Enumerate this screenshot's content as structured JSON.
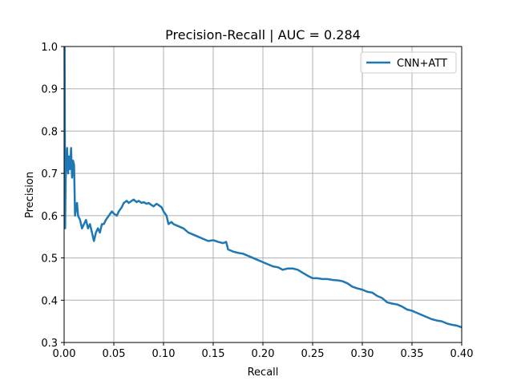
{
  "chart_data": {
    "type": "line",
    "title": "Precision-Recall | AUC = 0.284",
    "xlabel": "Recall",
    "ylabel": "Precision",
    "xlim": [
      0,
      0.4
    ],
    "ylim": [
      0.3,
      1.0
    ],
    "xticks": [
      "0.00",
      "0.05",
      "0.10",
      "0.15",
      "0.20",
      "0.25",
      "0.30",
      "0.35",
      "0.40"
    ],
    "yticks": [
      "0.3",
      "0.4",
      "0.5",
      "0.6",
      "0.7",
      "0.8",
      "0.9",
      "1.0"
    ],
    "grid": true,
    "legend_position": "top-right",
    "series": [
      {
        "name": "CNN+ATT",
        "color": "#1f77b4",
        "x": [
          0.0005,
          0.0008,
          0.001,
          0.0015,
          0.002,
          0.003,
          0.004,
          0.005,
          0.006,
          0.007,
          0.008,
          0.009,
          0.01,
          0.011,
          0.012,
          0.013,
          0.014,
          0.016,
          0.018,
          0.02,
          0.022,
          0.024,
          0.026,
          0.028,
          0.03,
          0.032,
          0.034,
          0.036,
          0.038,
          0.04,
          0.042,
          0.045,
          0.048,
          0.05,
          0.053,
          0.055,
          0.058,
          0.06,
          0.063,
          0.065,
          0.068,
          0.07,
          0.073,
          0.075,
          0.078,
          0.08,
          0.083,
          0.085,
          0.088,
          0.09,
          0.093,
          0.095,
          0.098,
          0.1,
          0.103,
          0.105,
          0.108,
          0.11,
          0.115,
          0.12,
          0.125,
          0.13,
          0.135,
          0.14,
          0.145,
          0.15,
          0.155,
          0.16,
          0.163,
          0.165,
          0.17,
          0.175,
          0.18,
          0.185,
          0.19,
          0.195,
          0.2,
          0.205,
          0.21,
          0.215,
          0.22,
          0.225,
          0.23,
          0.235,
          0.24,
          0.245,
          0.25,
          0.255,
          0.26,
          0.265,
          0.27,
          0.275,
          0.28,
          0.285,
          0.29,
          0.295,
          0.3,
          0.305,
          0.31,
          0.315,
          0.32,
          0.325,
          0.33,
          0.335,
          0.34,
          0.345,
          0.35,
          0.355,
          0.36,
          0.365,
          0.37,
          0.375,
          0.38,
          0.385,
          0.39,
          0.395,
          0.4
        ],
        "y": [
          1.0,
          0.75,
          0.57,
          0.68,
          0.72,
          0.76,
          0.7,
          0.74,
          0.71,
          0.76,
          0.69,
          0.73,
          0.72,
          0.6,
          0.62,
          0.63,
          0.6,
          0.59,
          0.57,
          0.58,
          0.59,
          0.57,
          0.58,
          0.56,
          0.54,
          0.56,
          0.57,
          0.56,
          0.58,
          0.58,
          0.59,
          0.6,
          0.61,
          0.605,
          0.6,
          0.61,
          0.62,
          0.63,
          0.635,
          0.63,
          0.635,
          0.638,
          0.632,
          0.635,
          0.63,
          0.632,
          0.628,
          0.63,
          0.625,
          0.622,
          0.628,
          0.625,
          0.62,
          0.61,
          0.6,
          0.58,
          0.585,
          0.58,
          0.575,
          0.57,
          0.56,
          0.555,
          0.55,
          0.545,
          0.54,
          0.542,
          0.538,
          0.535,
          0.538,
          0.52,
          0.515,
          0.512,
          0.51,
          0.505,
          0.5,
          0.495,
          0.49,
          0.485,
          0.48,
          0.478,
          0.472,
          0.475,
          0.475,
          0.472,
          0.465,
          0.458,
          0.452,
          0.452,
          0.45,
          0.45,
          0.448,
          0.447,
          0.445,
          0.44,
          0.432,
          0.428,
          0.425,
          0.42,
          0.418,
          0.41,
          0.405,
          0.395,
          0.392,
          0.39,
          0.385,
          0.378,
          0.375,
          0.37,
          0.365,
          0.36,
          0.355,
          0.352,
          0.35,
          0.345,
          0.342,
          0.34,
          0.336
        ]
      }
    ]
  }
}
